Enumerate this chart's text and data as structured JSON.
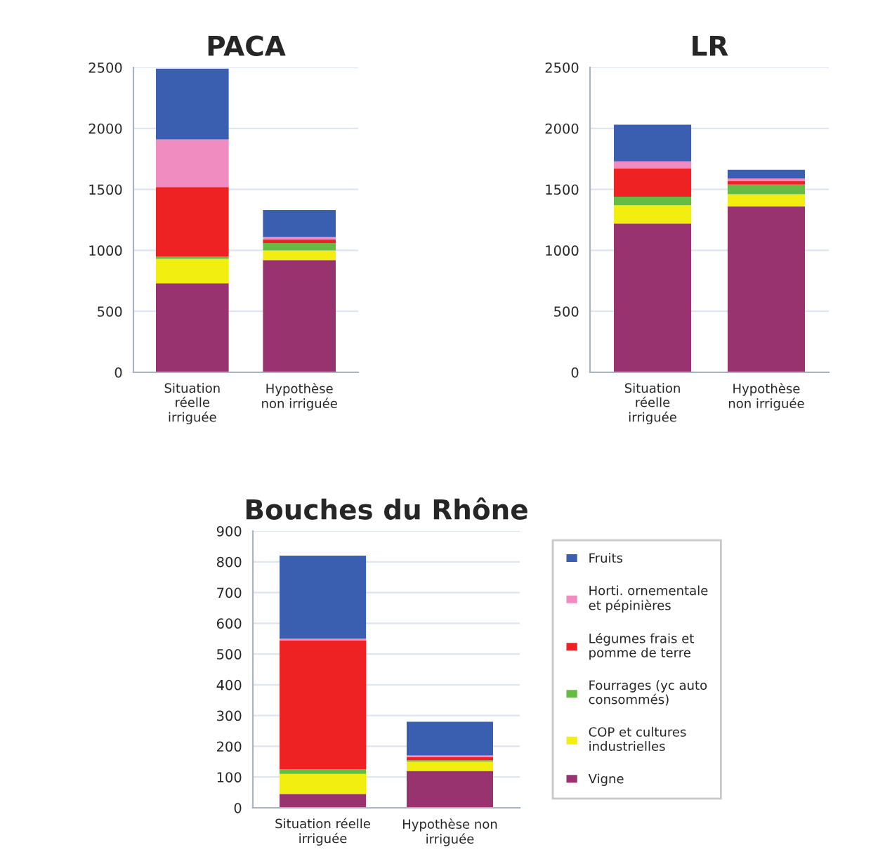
{
  "chart_data": [
    {
      "type": "bar",
      "title": "PACA",
      "stacked": true,
      "categories": [
        "Situation\nréelle\nirriguée",
        "Hypothèse\nnon irriguée"
      ],
      "ylim": [
        0,
        2500
      ],
      "yticks": [
        0,
        500,
        1000,
        1500,
        2000,
        2500
      ],
      "grid": "y",
      "series": [
        {
          "color": "#99336f",
          "values": [
            730,
            920
          ]
        },
        {
          "color": "#f2ee10",
          "values": [
            200,
            80
          ]
        },
        {
          "color": "#66bb44",
          "values": [
            20,
            60
          ]
        },
        {
          "color": "#ee2222",
          "values": [
            570,
            30
          ]
        },
        {
          "color": "#f08cc0",
          "values": [
            390,
            20
          ]
        },
        {
          "color": "#3a5fb0",
          "values": [
            580,
            220
          ]
        }
      ]
    },
    {
      "type": "bar",
      "title": "LR",
      "stacked": true,
      "categories": [
        "Situation\nréelle\nirriguée",
        "Hypothèse\nnon irriguée"
      ],
      "ylim": [
        0,
        2500
      ],
      "yticks": [
        0,
        500,
        1000,
        1500,
        2000,
        2500
      ],
      "grid": "y",
      "series": [
        {
          "color": "#99336f",
          "values": [
            1220,
            1360
          ]
        },
        {
          "color": "#f2ee10",
          "values": [
            150,
            100
          ]
        },
        {
          "color": "#66bb44",
          "values": [
            70,
            80
          ]
        },
        {
          "color": "#ee2222",
          "values": [
            230,
            30
          ]
        },
        {
          "color": "#f08cc0",
          "values": [
            60,
            20
          ]
        },
        {
          "color": "#3a5fb0",
          "values": [
            300,
            70
          ]
        }
      ]
    },
    {
      "type": "bar",
      "title": "Bouches du Rhône",
      "stacked": true,
      "categories": [
        "Situation réelle\nirriguée",
        "Hypothèse non\nirriguée"
      ],
      "ylim": [
        0,
        900
      ],
      "yticks": [
        0,
        100,
        200,
        300,
        400,
        500,
        600,
        700,
        800,
        900
      ],
      "grid": "y",
      "legend": "right",
      "series": [
        {
          "name": "Vigne",
          "color": "#99336f",
          "values": [
            45,
            120
          ]
        },
        {
          "name": "COP et cultures\nindustrielles",
          "color": "#f2ee10",
          "values": [
            65,
            30
          ]
        },
        {
          "name": "Fourrages (yc auto\nconsommés)",
          "color": "#66bb44",
          "values": [
            15,
            5
          ]
        },
        {
          "name": "Légumes frais et\npomme de terre",
          "color": "#ee2222",
          "values": [
            420,
            10
          ]
        },
        {
          "name": "Horti. ornementale\net pépinières",
          "color": "#f08cc0",
          "values": [
            5,
            5
          ]
        },
        {
          "name": "Fruits",
          "color": "#3a5fb0",
          "values": [
            270,
            110
          ]
        }
      ]
    }
  ]
}
